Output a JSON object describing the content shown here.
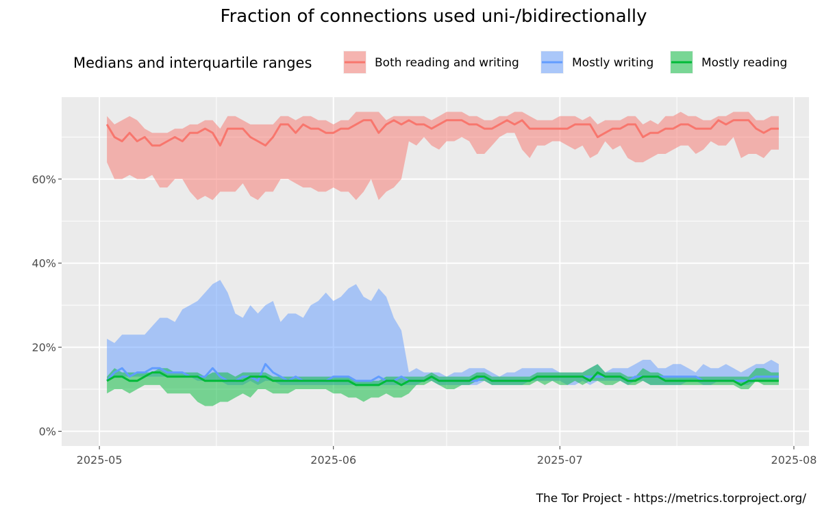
{
  "chart_data": {
    "type": "area",
    "title": "Fraction of connections used uni-/bidirectionally",
    "legend_title": "Medians and interquartile ranges",
    "legend_placement": "top",
    "caption": "The Tor Project - https://metrics.torproject.org/",
    "xlabel": "",
    "ylabel": "",
    "x_ticks": [
      "2025-05",
      "2025-06",
      "2025-07",
      "2025-08"
    ],
    "y_ticks": [
      "0%",
      "20%",
      "40%",
      "60%"
    ],
    "ylim": [
      -0.035,
      0.795
    ],
    "xlim": [
      "2025-04-26",
      "2025-08-03"
    ],
    "grid": true,
    "x_start": "2025-05-02",
    "x_step_days": 1,
    "series": [
      {
        "name": "Both reading and writing",
        "color": "#F8766D",
        "median": [
          0.73,
          0.7,
          0.69,
          0.71,
          0.69,
          0.7,
          0.68,
          0.68,
          0.69,
          0.7,
          0.69,
          0.71,
          0.71,
          0.72,
          0.71,
          0.68,
          0.72,
          0.72,
          0.72,
          0.7,
          0.69,
          0.68,
          0.7,
          0.73,
          0.73,
          0.71,
          0.73,
          0.72,
          0.72,
          0.71,
          0.71,
          0.72,
          0.72,
          0.73,
          0.74,
          0.74,
          0.71,
          0.73,
          0.74,
          0.73,
          0.74,
          0.73,
          0.73,
          0.72,
          0.73,
          0.74,
          0.74,
          0.74,
          0.73,
          0.73,
          0.72,
          0.72,
          0.73,
          0.74,
          0.73,
          0.74,
          0.72,
          0.72,
          0.72,
          0.72,
          0.72,
          0.72,
          0.73,
          0.73,
          0.73,
          0.7,
          0.71,
          0.72,
          0.72,
          0.73,
          0.73,
          0.7,
          0.71,
          0.71,
          0.72,
          0.72,
          0.73,
          0.73,
          0.72,
          0.72,
          0.72,
          0.74,
          0.73,
          0.74,
          0.74,
          0.74,
          0.72,
          0.71,
          0.72,
          0.72
        ],
        "q1": [
          0.64,
          0.6,
          0.6,
          0.61,
          0.6,
          0.6,
          0.61,
          0.58,
          0.58,
          0.6,
          0.6,
          0.57,
          0.55,
          0.56,
          0.55,
          0.57,
          0.57,
          0.57,
          0.59,
          0.56,
          0.55,
          0.57,
          0.57,
          0.6,
          0.6,
          0.59,
          0.58,
          0.58,
          0.57,
          0.57,
          0.58,
          0.57,
          0.57,
          0.55,
          0.57,
          0.6,
          0.55,
          0.57,
          0.58,
          0.6,
          0.69,
          0.68,
          0.7,
          0.68,
          0.67,
          0.69,
          0.69,
          0.7,
          0.69,
          0.66,
          0.66,
          0.68,
          0.7,
          0.71,
          0.71,
          0.67,
          0.65,
          0.68,
          0.68,
          0.69,
          0.69,
          0.68,
          0.67,
          0.68,
          0.65,
          0.66,
          0.69,
          0.67,
          0.68,
          0.65,
          0.64,
          0.64,
          0.65,
          0.66,
          0.66,
          0.67,
          0.68,
          0.68,
          0.66,
          0.67,
          0.69,
          0.68,
          0.68,
          0.7,
          0.65,
          0.66,
          0.66,
          0.65,
          0.67,
          0.67
        ],
        "q3": [
          0.75,
          0.73,
          0.74,
          0.75,
          0.74,
          0.72,
          0.71,
          0.71,
          0.71,
          0.72,
          0.72,
          0.73,
          0.73,
          0.74,
          0.74,
          0.72,
          0.75,
          0.75,
          0.74,
          0.73,
          0.73,
          0.73,
          0.73,
          0.75,
          0.75,
          0.74,
          0.75,
          0.75,
          0.74,
          0.74,
          0.73,
          0.74,
          0.74,
          0.76,
          0.76,
          0.76,
          0.76,
          0.74,
          0.75,
          0.75,
          0.75,
          0.75,
          0.75,
          0.74,
          0.75,
          0.76,
          0.76,
          0.76,
          0.75,
          0.75,
          0.74,
          0.74,
          0.75,
          0.75,
          0.76,
          0.76,
          0.75,
          0.74,
          0.74,
          0.74,
          0.75,
          0.75,
          0.75,
          0.74,
          0.75,
          0.73,
          0.74,
          0.74,
          0.74,
          0.75,
          0.75,
          0.73,
          0.74,
          0.73,
          0.75,
          0.75,
          0.76,
          0.75,
          0.75,
          0.74,
          0.74,
          0.75,
          0.75,
          0.76,
          0.76,
          0.76,
          0.74,
          0.74,
          0.75,
          0.75
        ]
      },
      {
        "name": "Mostly writing",
        "color": "#619CFF",
        "median": [
          0.12,
          0.14,
          0.15,
          0.13,
          0.14,
          0.14,
          0.15,
          0.15,
          0.14,
          0.14,
          0.14,
          0.13,
          0.13,
          0.13,
          0.15,
          0.13,
          0.12,
          0.12,
          0.13,
          0.13,
          0.12,
          0.16,
          0.14,
          0.13,
          0.12,
          0.13,
          0.12,
          0.12,
          0.12,
          0.12,
          0.13,
          0.13,
          0.13,
          0.12,
          0.12,
          0.12,
          0.13,
          0.12,
          0.12,
          0.13,
          0.12,
          0.12,
          0.12,
          0.13,
          0.12,
          0.12,
          0.12,
          0.12,
          0.12,
          0.12,
          0.13,
          0.12,
          0.12,
          0.12,
          0.12,
          0.12,
          0.12,
          0.13,
          0.13,
          0.13,
          0.13,
          0.13,
          0.13,
          0.13,
          0.13,
          0.13,
          0.13,
          0.13,
          0.13,
          0.12,
          0.13,
          0.13,
          0.13,
          0.13,
          0.13,
          0.13,
          0.13,
          0.13,
          0.13,
          0.12,
          0.12,
          0.12,
          0.12,
          0.12,
          0.12,
          0.12,
          0.13,
          0.13,
          0.13,
          0.13
        ],
        "q1": [
          0.12,
          0.13,
          0.13,
          0.13,
          0.13,
          0.13,
          0.13,
          0.13,
          0.13,
          0.13,
          0.13,
          0.13,
          0.12,
          0.12,
          0.12,
          0.12,
          0.11,
          0.11,
          0.11,
          0.12,
          0.11,
          0.12,
          0.12,
          0.11,
          0.11,
          0.11,
          0.11,
          0.11,
          0.11,
          0.11,
          0.11,
          0.11,
          0.11,
          0.11,
          0.11,
          0.11,
          0.11,
          0.11,
          0.11,
          0.11,
          0.11,
          0.11,
          0.12,
          0.12,
          0.11,
          0.11,
          0.11,
          0.11,
          0.11,
          0.11,
          0.12,
          0.11,
          0.11,
          0.11,
          0.11,
          0.11,
          0.12,
          0.12,
          0.12,
          0.12,
          0.12,
          0.11,
          0.11,
          0.12,
          0.11,
          0.12,
          0.12,
          0.12,
          0.12,
          0.11,
          0.12,
          0.12,
          0.11,
          0.11,
          0.11,
          0.11,
          0.11,
          0.12,
          0.12,
          0.11,
          0.11,
          0.12,
          0.12,
          0.12,
          0.11,
          0.11,
          0.12,
          0.12,
          0.12,
          0.12
        ],
        "q3": [
          0.22,
          0.21,
          0.23,
          0.23,
          0.23,
          0.23,
          0.25,
          0.27,
          0.27,
          0.26,
          0.29,
          0.3,
          0.31,
          0.33,
          0.35,
          0.36,
          0.33,
          0.28,
          0.27,
          0.3,
          0.28,
          0.3,
          0.31,
          0.26,
          0.28,
          0.28,
          0.27,
          0.3,
          0.31,
          0.33,
          0.31,
          0.32,
          0.34,
          0.35,
          0.32,
          0.31,
          0.34,
          0.32,
          0.27,
          0.24,
          0.14,
          0.15,
          0.14,
          0.14,
          0.14,
          0.13,
          0.14,
          0.14,
          0.15,
          0.15,
          0.15,
          0.14,
          0.13,
          0.14,
          0.14,
          0.15,
          0.15,
          0.15,
          0.15,
          0.15,
          0.14,
          0.14,
          0.14,
          0.14,
          0.15,
          0.16,
          0.14,
          0.15,
          0.15,
          0.15,
          0.16,
          0.17,
          0.17,
          0.15,
          0.15,
          0.16,
          0.16,
          0.15,
          0.14,
          0.16,
          0.15,
          0.15,
          0.16,
          0.15,
          0.14,
          0.15,
          0.16,
          0.16,
          0.17,
          0.16
        ]
      },
      {
        "name": "Mostly reading",
        "color": "#00BA38",
        "median": [
          0.12,
          0.13,
          0.13,
          0.12,
          0.12,
          0.13,
          0.14,
          0.14,
          0.13,
          0.13,
          0.13,
          0.13,
          0.13,
          0.12,
          0.12,
          0.12,
          0.12,
          0.12,
          0.12,
          0.13,
          0.13,
          0.13,
          0.12,
          0.12,
          0.12,
          0.12,
          0.12,
          0.12,
          0.12,
          0.12,
          0.12,
          0.12,
          0.12,
          0.11,
          0.11,
          0.11,
          0.11,
          0.12,
          0.12,
          0.11,
          0.12,
          0.12,
          0.12,
          0.13,
          0.12,
          0.12,
          0.12,
          0.12,
          0.12,
          0.13,
          0.13,
          0.12,
          0.12,
          0.12,
          0.12,
          0.12,
          0.12,
          0.13,
          0.13,
          0.13,
          0.13,
          0.13,
          0.13,
          0.13,
          0.12,
          0.14,
          0.13,
          0.13,
          0.13,
          0.12,
          0.12,
          0.13,
          0.13,
          0.13,
          0.12,
          0.12,
          0.12,
          0.12,
          0.12,
          0.12,
          0.12,
          0.12,
          0.12,
          0.12,
          0.11,
          0.12,
          0.12,
          0.12,
          0.12,
          0.12
        ],
        "q1": [
          0.09,
          0.1,
          0.1,
          0.09,
          0.1,
          0.11,
          0.11,
          0.11,
          0.09,
          0.09,
          0.09,
          0.09,
          0.07,
          0.06,
          0.06,
          0.07,
          0.07,
          0.08,
          0.09,
          0.08,
          0.1,
          0.1,
          0.09,
          0.09,
          0.09,
          0.1,
          0.1,
          0.1,
          0.1,
          0.1,
          0.09,
          0.09,
          0.08,
          0.08,
          0.07,
          0.08,
          0.08,
          0.09,
          0.08,
          0.08,
          0.09,
          0.11,
          0.11,
          0.12,
          0.11,
          0.1,
          0.1,
          0.11,
          0.11,
          0.12,
          0.12,
          0.11,
          0.11,
          0.11,
          0.11,
          0.11,
          0.11,
          0.12,
          0.11,
          0.12,
          0.11,
          0.11,
          0.12,
          0.11,
          0.12,
          0.12,
          0.11,
          0.11,
          0.12,
          0.11,
          0.11,
          0.12,
          0.11,
          0.11,
          0.11,
          0.11,
          0.11,
          0.11,
          0.11,
          0.11,
          0.11,
          0.11,
          0.11,
          0.11,
          0.1,
          0.1,
          0.12,
          0.11,
          0.11,
          0.11
        ],
        "q3": [
          0.13,
          0.15,
          0.14,
          0.14,
          0.14,
          0.14,
          0.14,
          0.15,
          0.15,
          0.14,
          0.14,
          0.14,
          0.14,
          0.13,
          0.14,
          0.14,
          0.14,
          0.13,
          0.14,
          0.14,
          0.14,
          0.14,
          0.13,
          0.13,
          0.13,
          0.13,
          0.13,
          0.13,
          0.13,
          0.13,
          0.13,
          0.13,
          0.13,
          0.12,
          0.12,
          0.12,
          0.12,
          0.13,
          0.13,
          0.13,
          0.13,
          0.13,
          0.13,
          0.14,
          0.13,
          0.13,
          0.13,
          0.13,
          0.13,
          0.14,
          0.14,
          0.13,
          0.13,
          0.13,
          0.13,
          0.13,
          0.13,
          0.14,
          0.14,
          0.14,
          0.14,
          0.14,
          0.14,
          0.14,
          0.15,
          0.16,
          0.14,
          0.14,
          0.14,
          0.13,
          0.13,
          0.15,
          0.14,
          0.14,
          0.13,
          0.13,
          0.13,
          0.13,
          0.13,
          0.13,
          0.13,
          0.13,
          0.13,
          0.13,
          0.13,
          0.13,
          0.15,
          0.15,
          0.14,
          0.14
        ]
      }
    ]
  }
}
